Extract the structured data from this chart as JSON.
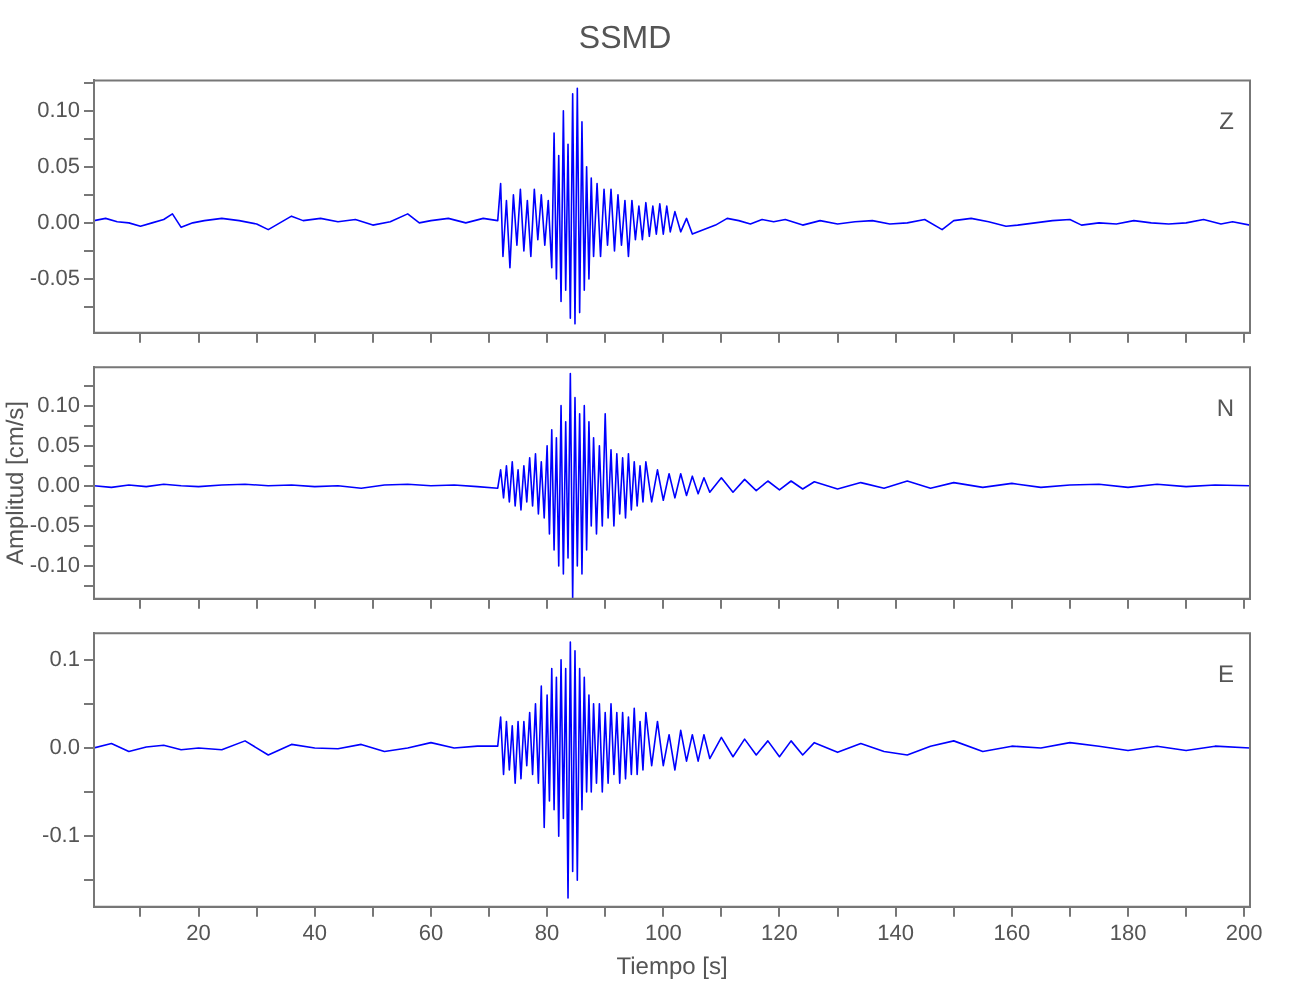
{
  "chart_data": [
    {
      "type": "line",
      "title": "SSMD",
      "annotations": [
        "Z"
      ],
      "tick_labels": "y",
      "grid": false,
      "xlim": [
        2,
        201
      ],
      "xticks": [
        {
          "value": 10,
          "label": null
        },
        20,
        {
          "value": 30,
          "label": null
        },
        40,
        {
          "value": 50,
          "label": null
        },
        60,
        {
          "value": 70,
          "label": null
        },
        80,
        {
          "value": 90,
          "label": null
        },
        100,
        {
          "value": 110,
          "label": null
        },
        120,
        {
          "value": 130,
          "label": null
        },
        140,
        {
          "value": 150,
          "label": null
        },
        160,
        {
          "value": 170,
          "label": null
        },
        180,
        {
          "value": 190,
          "label": null
        },
        200
      ],
      "ylim": [
        -0.098,
        0.127
      ],
      "yticks": [
        {
          "value": 0.125,
          "label": null
        },
        {
          "value": 0.1,
          "label": "0.10"
        },
        {
          "value": 0.075,
          "label": null
        },
        {
          "value": 0.05,
          "label": "0.05"
        },
        {
          "value": 0.025,
          "label": null
        },
        {
          "value": 0,
          "label": "0.00"
        },
        {
          "value": -0.025,
          "label": null
        },
        {
          "value": -0.05,
          "label": "-0.05"
        },
        {
          "value": -0.075,
          "label": null
        }
      ],
      "series": [
        {
          "color": "#0000ff",
          "x": [
            2,
            4,
            6,
            8,
            10,
            12,
            14,
            15.5,
            17,
            19,
            21,
            24,
            27,
            30,
            32,
            34,
            36,
            38,
            41,
            44,
            47,
            50,
            53,
            56,
            58,
            60,
            63,
            66,
            69,
            71.5,
            72,
            72.4,
            73,
            73.6,
            74.2,
            74.8,
            75.4,
            76,
            76.6,
            77.2,
            77.8,
            78.4,
            79,
            79.6,
            80.2,
            80.8,
            81.2,
            81.6,
            82,
            82.4,
            82.8,
            83.2,
            83.6,
            84,
            84.4,
            84.8,
            85.2,
            85.6,
            86,
            86.4,
            86.8,
            87.2,
            87.6,
            88,
            88.6,
            89.2,
            89.8,
            90.4,
            91,
            91.6,
            92.2,
            92.8,
            93.4,
            94,
            94.6,
            95.2,
            95.8,
            96.4,
            97,
            97.6,
            98.2,
            98.8,
            99.4,
            100,
            100.6,
            101.2,
            102,
            103,
            104,
            105,
            107,
            109,
            111,
            113,
            115,
            117,
            119,
            121,
            124,
            127,
            130,
            133,
            136,
            139,
            142,
            145,
            148,
            150,
            153,
            156,
            159,
            161,
            164,
            167,
            170,
            172,
            175,
            178,
            181,
            184,
            187,
            190,
            193,
            196,
            198,
            201
          ],
          "values": [
            0.002,
            0.004,
            0.001,
            0.0,
            -0.003,
            0.0,
            0.003,
            0.008,
            -0.004,
            0.0,
            0.002,
            0.004,
            0.002,
            -0.001,
            -0.006,
            0.0,
            0.006,
            0.002,
            0.004,
            0.001,
            0.003,
            -0.002,
            0.001,
            0.008,
            0.0,
            0.002,
            0.004,
            0.0,
            0.004,
            0.002,
            0.035,
            -0.03,
            0.02,
            -0.04,
            0.025,
            -0.02,
            0.03,
            -0.025,
            0.02,
            -0.03,
            0.03,
            -0.015,
            0.025,
            -0.02,
            0.02,
            -0.04,
            0.08,
            -0.05,
            0.06,
            -0.07,
            0.1,
            -0.06,
            0.07,
            -0.085,
            0.115,
            -0.09,
            0.12,
            -0.08,
            0.09,
            -0.06,
            0.05,
            -0.05,
            0.04,
            -0.03,
            0.035,
            -0.03,
            0.03,
            -0.02,
            0.03,
            -0.025,
            0.025,
            -0.02,
            0.02,
            -0.03,
            0.02,
            -0.015,
            0.015,
            -0.015,
            0.018,
            -0.012,
            0.015,
            -0.01,
            0.017,
            -0.01,
            0.015,
            -0.008,
            0.01,
            -0.008,
            0.004,
            -0.01,
            -0.006,
            -0.002,
            0.004,
            0.002,
            -0.001,
            0.003,
            0.001,
            0.003,
            -0.002,
            0.002,
            -0.001,
            0.001,
            0.002,
            -0.001,
            0.0,
            0.003,
            -0.006,
            0.002,
            0.004,
            0.001,
            -0.003,
            -0.002,
            0.0,
            0.002,
            0.003,
            -0.002,
            0.0,
            -0.001,
            0.002,
            0.0,
            -0.001,
            0.0,
            0.003,
            -0.001,
            0.001,
            -0.002
          ]
        }
      ]
    },
    {
      "type": "line",
      "ylabel": "Amplitud [cm/s]",
      "annotations": [
        "N"
      ],
      "tick_labels": "y",
      "grid": false,
      "xlim": [
        2,
        201
      ],
      "xticks": [
        {
          "value": 10,
          "label": null
        },
        20,
        {
          "value": 30,
          "label": null
        },
        40,
        {
          "value": 50,
          "label": null
        },
        60,
        {
          "value": 70,
          "label": null
        },
        80,
        {
          "value": 90,
          "label": null
        },
        100,
        {
          "value": 110,
          "label": null
        },
        120,
        {
          "value": 130,
          "label": null
        },
        140,
        {
          "value": 150,
          "label": null
        },
        160,
        {
          "value": 170,
          "label": null
        },
        180,
        {
          "value": 190,
          "label": null
        },
        200
      ],
      "ylim": [
        -0.141,
        0.148
      ],
      "yticks": [
        {
          "value": 0.125,
          "label": null
        },
        {
          "value": 0.1,
          "label": "0.10"
        },
        {
          "value": 0.075,
          "label": null
        },
        {
          "value": 0.05,
          "label": "0.05"
        },
        {
          "value": 0.025,
          "label": null
        },
        {
          "value": 0,
          "label": "0.00"
        },
        {
          "value": -0.025,
          "label": null
        },
        {
          "value": -0.05,
          "label": "-0.05"
        },
        {
          "value": -0.075,
          "label": null
        },
        {
          "value": -0.1,
          "label": "-0.10"
        },
        {
          "value": -0.125,
          "label": null
        }
      ],
      "series": [
        {
          "color": "#0000ff",
          "x": [
            2,
            5,
            8,
            11,
            14,
            17,
            20,
            24,
            28,
            32,
            36,
            40,
            44,
            48,
            52,
            56,
            60,
            64,
            68,
            71.5,
            72,
            72.5,
            73,
            73.5,
            74,
            74.5,
            75,
            75.5,
            76,
            76.5,
            77,
            77.5,
            78,
            78.5,
            79,
            79.5,
            80,
            80.4,
            80.8,
            81.2,
            81.6,
            82,
            82.4,
            82.8,
            83.2,
            83.6,
            84,
            84.4,
            84.8,
            85.2,
            85.6,
            86,
            86.4,
            86.8,
            87.2,
            87.6,
            88,
            88.5,
            89,
            89.5,
            90,
            90.5,
            91,
            91.5,
            92,
            92.5,
            93,
            93.5,
            94,
            94.5,
            95,
            95.5,
            96,
            96.5,
            97,
            98,
            99,
            100,
            101,
            102,
            103,
            104,
            105,
            106,
            107,
            108,
            110,
            112,
            114,
            116,
            118,
            120,
            122,
            124,
            126,
            130,
            134,
            138,
            142,
            146,
            150,
            155,
            160,
            165,
            170,
            175,
            180,
            185,
            190,
            195,
            201
          ],
          "values": [
            0.0,
            -0.002,
            0.001,
            -0.001,
            0.002,
            0.0,
            -0.001,
            0.001,
            0.002,
            0.0,
            0.001,
            -0.001,
            0.0,
            -0.003,
            0.001,
            0.002,
            0.0,
            0.001,
            -0.001,
            -0.003,
            0.02,
            -0.015,
            0.025,
            -0.02,
            0.03,
            -0.025,
            0.02,
            -0.03,
            0.025,
            -0.02,
            0.035,
            -0.025,
            0.04,
            -0.035,
            0.03,
            -0.04,
            0.05,
            -0.06,
            0.07,
            -0.08,
            0.06,
            -0.1,
            0.1,
            -0.11,
            0.08,
            -0.09,
            0.14,
            -0.14,
            0.11,
            -0.1,
            0.09,
            -0.11,
            0.1,
            -0.08,
            0.08,
            -0.05,
            0.06,
            -0.06,
            0.05,
            -0.05,
            0.09,
            -0.04,
            0.045,
            -0.05,
            0.04,
            -0.035,
            0.035,
            -0.04,
            0.04,
            -0.03,
            0.03,
            -0.025,
            0.025,
            -0.02,
            0.03,
            -0.02,
            0.02,
            -0.018,
            0.015,
            -0.015,
            0.015,
            -0.012,
            0.012,
            -0.01,
            0.01,
            -0.008,
            0.01,
            -0.008,
            0.008,
            -0.006,
            0.006,
            -0.005,
            0.006,
            -0.004,
            0.005,
            -0.004,
            0.004,
            -0.003,
            0.006,
            -0.003,
            0.004,
            -0.002,
            0.003,
            -0.002,
            0.001,
            0.002,
            -0.002,
            0.002,
            -0.001,
            0.001,
            0.0
          ]
        }
      ]
    },
    {
      "type": "line",
      "xlabel": "Tiempo [s]",
      "annotations": [
        "E"
      ],
      "grid": false,
      "xlim": [
        2,
        201
      ],
      "xticks": [
        {
          "value": 10,
          "label": null
        },
        20,
        {
          "value": 30,
          "label": null
        },
        40,
        {
          "value": 50,
          "label": null
        },
        60,
        {
          "value": 70,
          "label": null
        },
        80,
        {
          "value": 90,
          "label": null
        },
        100,
        {
          "value": 110,
          "label": null
        },
        120,
        {
          "value": 130,
          "label": null
        },
        140,
        {
          "value": 150,
          "label": null
        },
        160,
        {
          "value": 170,
          "label": null
        },
        180,
        {
          "value": 190,
          "label": null
        },
        200
      ],
      "ylim": [
        -0.18,
        0.13
      ],
      "yticks": [
        {
          "value": 0.1,
          "label": "0.1"
        },
        {
          "value": 0.05,
          "label": null
        },
        {
          "value": 0,
          "label": "0.0"
        },
        {
          "value": -0.05,
          "label": null
        },
        {
          "value": -0.1,
          "label": "-0.1"
        },
        {
          "value": -0.15,
          "label": null
        }
      ],
      "series": [
        {
          "color": "#0000ff",
          "x": [
            2,
            5,
            8,
            11,
            14,
            17,
            20,
            24,
            28,
            32,
            36,
            40,
            44,
            48,
            52,
            56,
            60,
            64,
            68,
            71.5,
            72,
            72.5,
            73,
            73.5,
            74,
            74.5,
            75,
            75.5,
            76,
            76.5,
            77,
            77.5,
            78,
            78.5,
            79,
            79.5,
            80,
            80.4,
            80.8,
            81.2,
            81.6,
            82,
            82.4,
            82.8,
            83.2,
            83.6,
            84,
            84.4,
            84.8,
            85.2,
            85.6,
            86,
            86.4,
            86.8,
            87.2,
            87.6,
            88,
            88.5,
            89,
            89.5,
            90,
            90.5,
            91,
            91.5,
            92,
            92.5,
            93,
            93.5,
            94,
            94.5,
            95,
            95.5,
            96,
            96.5,
            97,
            98,
            99,
            100,
            101,
            102,
            103,
            104,
            105,
            106,
            107,
            108,
            110,
            112,
            114,
            116,
            118,
            120,
            122,
            124,
            126,
            130,
            134,
            138,
            142,
            146,
            150,
            155,
            160,
            165,
            170,
            175,
            180,
            185,
            190,
            195,
            201
          ],
          "values": [
            0.0,
            0.005,
            -0.004,
            0.001,
            0.003,
            -0.002,
            0.0,
            -0.002,
            0.008,
            -0.008,
            0.004,
            0.0,
            -0.001,
            0.004,
            -0.004,
            0.0,
            0.006,
            0.0,
            0.002,
            0.002,
            0.035,
            -0.03,
            0.03,
            -0.025,
            0.025,
            -0.04,
            0.03,
            -0.035,
            0.03,
            -0.02,
            0.04,
            -0.03,
            0.05,
            -0.04,
            0.07,
            -0.09,
            0.06,
            -0.06,
            0.09,
            -0.07,
            0.08,
            -0.1,
            0.1,
            -0.08,
            0.09,
            -0.17,
            0.12,
            -0.14,
            0.11,
            -0.15,
            0.09,
            -0.07,
            0.08,
            -0.05,
            0.06,
            -0.05,
            0.05,
            -0.04,
            0.05,
            -0.05,
            0.04,
            -0.04,
            0.05,
            -0.03,
            0.04,
            -0.04,
            0.04,
            -0.035,
            0.035,
            -0.03,
            0.045,
            -0.03,
            0.03,
            -0.025,
            0.04,
            -0.02,
            0.03,
            -0.02,
            0.015,
            -0.025,
            0.02,
            -0.015,
            0.015,
            -0.015,
            0.015,
            -0.012,
            0.012,
            -0.01,
            0.01,
            -0.008,
            0.008,
            -0.01,
            0.008,
            -0.008,
            0.006,
            -0.005,
            0.005,
            -0.004,
            -0.008,
            0.002,
            0.008,
            -0.004,
            0.002,
            0.0,
            0.006,
            0.002,
            -0.003,
            0.002,
            -0.003,
            0.002,
            0.0
          ]
        }
      ]
    }
  ]
}
